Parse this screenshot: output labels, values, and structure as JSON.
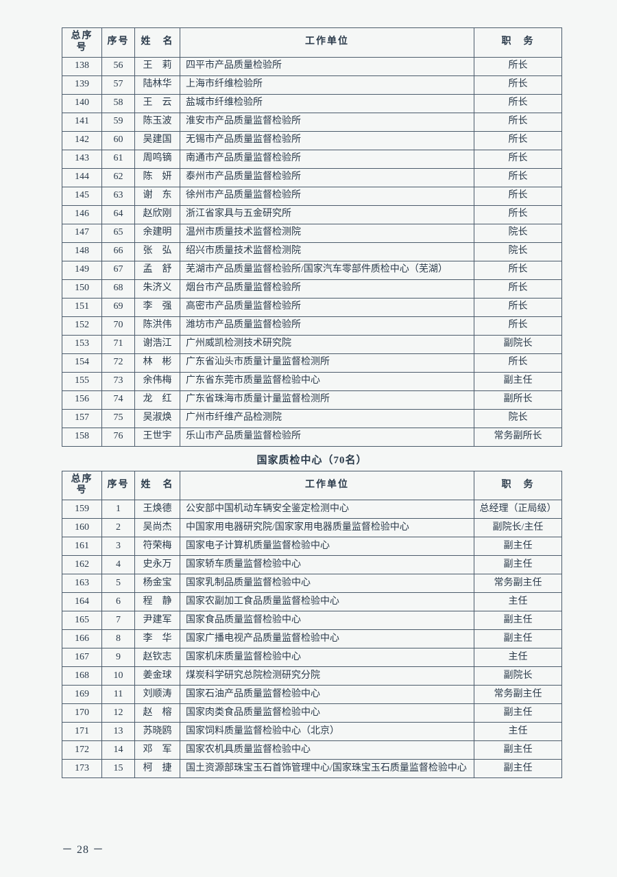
{
  "columns": {
    "total": "总序号",
    "seq": "序号",
    "name": "姓　名",
    "unit": "工作单位",
    "position": "职　务"
  },
  "section_title": "国家质检中心（70名）",
  "page_number": "－ 28 －",
  "table1_rows": [
    {
      "total": "138",
      "seq": "56",
      "name": "王　莉",
      "unit": "四平市产品质量检验所",
      "pos": "所长"
    },
    {
      "total": "139",
      "seq": "57",
      "name": "陆林华",
      "unit": "上海市纤维检验所",
      "pos": "所长"
    },
    {
      "total": "140",
      "seq": "58",
      "name": "王　云",
      "unit": "盐城市纤维检验所",
      "pos": "所长"
    },
    {
      "total": "141",
      "seq": "59",
      "name": "陈玉波",
      "unit": "淮安市产品质量监督检验所",
      "pos": "所长"
    },
    {
      "total": "142",
      "seq": "60",
      "name": "吴建国",
      "unit": "无锡市产品质量监督检验所",
      "pos": "所长"
    },
    {
      "total": "143",
      "seq": "61",
      "name": "周鸣镝",
      "unit": "南通市产品质量监督检验所",
      "pos": "所长"
    },
    {
      "total": "144",
      "seq": "62",
      "name": "陈　妍",
      "unit": "泰州市产品质量监督检验所",
      "pos": "所长"
    },
    {
      "total": "145",
      "seq": "63",
      "name": "谢　东",
      "unit": "徐州市产品质量监督检验所",
      "pos": "所长"
    },
    {
      "total": "146",
      "seq": "64",
      "name": "赵欣刚",
      "unit": "浙江省家具与五金研究所",
      "pos": "所长"
    },
    {
      "total": "147",
      "seq": "65",
      "name": "余建明",
      "unit": "温州市质量技术监督检测院",
      "pos": "院长"
    },
    {
      "total": "148",
      "seq": "66",
      "name": "张　弘",
      "unit": "绍兴市质量技术监督检测院",
      "pos": "院长"
    },
    {
      "total": "149",
      "seq": "67",
      "name": "孟　舒",
      "unit": "芜湖市产品质量监督检验所/国家汽车零部件质检中心（芜湖）",
      "pos": "所长"
    },
    {
      "total": "150",
      "seq": "68",
      "name": "朱济义",
      "unit": "烟台市产品质量监督检验所",
      "pos": "所长"
    },
    {
      "total": "151",
      "seq": "69",
      "name": "李　强",
      "unit": "高密市产品质量监督检验所",
      "pos": "所长"
    },
    {
      "total": "152",
      "seq": "70",
      "name": "陈洪伟",
      "unit": "潍坊市产品质量监督检验所",
      "pos": "所长"
    },
    {
      "total": "153",
      "seq": "71",
      "name": "谢浩江",
      "unit": "广州威凯检测技术研究院",
      "pos": "副院长"
    },
    {
      "total": "154",
      "seq": "72",
      "name": "林　彬",
      "unit": "广东省汕头市质量计量监督检测所",
      "pos": "所长"
    },
    {
      "total": "155",
      "seq": "73",
      "name": "余伟梅",
      "unit": "广东省东莞市质量监督检验中心",
      "pos": "副主任"
    },
    {
      "total": "156",
      "seq": "74",
      "name": "龙　红",
      "unit": "广东省珠海市质量计量监督检测所",
      "pos": "副所长"
    },
    {
      "total": "157",
      "seq": "75",
      "name": "吴淑焕",
      "unit": "广州市纤维产品检测院",
      "pos": "院长"
    },
    {
      "total": "158",
      "seq": "76",
      "name": "王世宇",
      "unit": "乐山市产品质量监督检验所",
      "pos": "常务副所长"
    }
  ],
  "table2_rows": [
    {
      "total": "159",
      "seq": "1",
      "name": "王焕德",
      "unit": "公安部中国机动车辆安全鉴定检测中心",
      "pos": "总经理（正局级）"
    },
    {
      "total": "160",
      "seq": "2",
      "name": "吴尚杰",
      "unit": "中国家用电器研究院/国家家用电器质量监督检验中心",
      "pos": "副院长/主任"
    },
    {
      "total": "161",
      "seq": "3",
      "name": "符荣梅",
      "unit": "国家电子计算机质量监督检验中心",
      "pos": "副主任"
    },
    {
      "total": "162",
      "seq": "4",
      "name": "史永万",
      "unit": "国家轿车质量监督检验中心",
      "pos": "副主任"
    },
    {
      "total": "163",
      "seq": "5",
      "name": "杨金宝",
      "unit": "国家乳制品质量监督检验中心",
      "pos": "常务副主任"
    },
    {
      "total": "164",
      "seq": "6",
      "name": "程　静",
      "unit": "国家农副加工食品质量监督检验中心",
      "pos": "主任"
    },
    {
      "total": "165",
      "seq": "7",
      "name": "尹建军",
      "unit": "国家食品质量监督检验中心",
      "pos": "副主任"
    },
    {
      "total": "166",
      "seq": "8",
      "name": "李　华",
      "unit": "国家广播电视产品质量监督检验中心",
      "pos": "副主任"
    },
    {
      "total": "167",
      "seq": "9",
      "name": "赵钦志",
      "unit": "国家机床质量监督检验中心",
      "pos": "主任"
    },
    {
      "total": "168",
      "seq": "10",
      "name": "姜金球",
      "unit": "煤炭科学研究总院检测研究分院",
      "pos": "副院长"
    },
    {
      "total": "169",
      "seq": "11",
      "name": "刘顺涛",
      "unit": "国家石油产品质量监督检验中心",
      "pos": "常务副主任"
    },
    {
      "total": "170",
      "seq": "12",
      "name": "赵　榕",
      "unit": "国家肉类食品质量监督检验中心",
      "pos": "副主任"
    },
    {
      "total": "171",
      "seq": "13",
      "name": "苏晓鸥",
      "unit": "国家饲料质量监督检验中心（北京）",
      "pos": "主任"
    },
    {
      "total": "172",
      "seq": "14",
      "name": "邓　军",
      "unit": "国家农机具质量监督检验中心",
      "pos": "副主任"
    },
    {
      "total": "173",
      "seq": "15",
      "name": "柯　捷",
      "unit": "国土资源部珠宝玉石首饰管理中心/国家珠宝玉石质量监督检验中心",
      "pos": "副主任"
    }
  ]
}
